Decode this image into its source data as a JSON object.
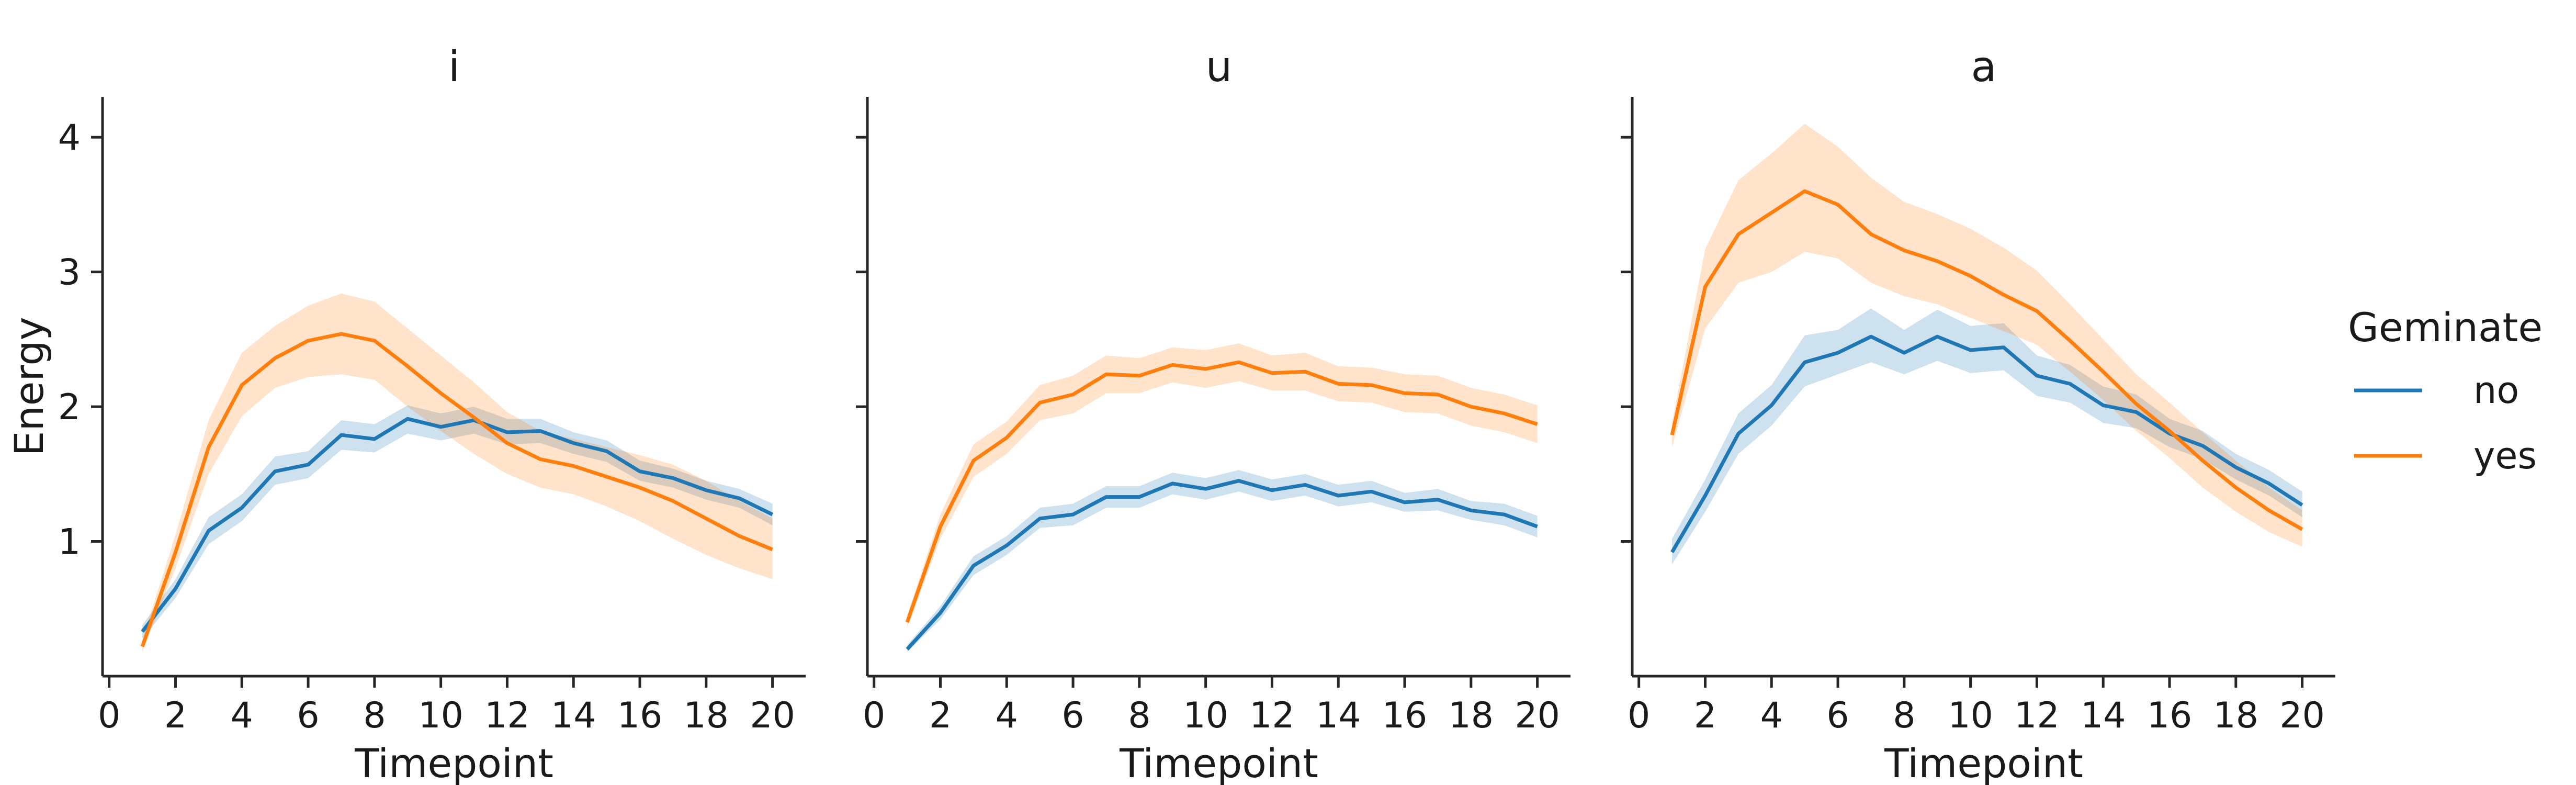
{
  "colors": {
    "no": "#1f77b4",
    "yes": "#ff7f0e"
  },
  "legend": {
    "title": "Geminate",
    "entries": [
      {
        "key": "no",
        "label": "no"
      },
      {
        "key": "yes",
        "label": "yes"
      }
    ],
    "placement": "right"
  },
  "chart_data": [
    {
      "type": "line",
      "title": "i",
      "xlabel": "Timepoint",
      "ylabel": "Energy",
      "xlim": [
        0,
        21
      ],
      "ylim": [
        0,
        4.3
      ],
      "xticks": [
        0,
        2,
        4,
        6,
        8,
        10,
        12,
        14,
        16,
        18,
        20
      ],
      "yticks": [
        1,
        2,
        3,
        4
      ],
      "x": [
        1,
        2,
        3,
        4,
        5,
        6,
        7,
        8,
        9,
        10,
        11,
        12,
        13,
        14,
        15,
        16,
        17,
        18,
        19,
        20
      ],
      "series": [
        {
          "name": "no",
          "values": [
            0.33,
            0.65,
            1.08,
            1.25,
            1.52,
            1.57,
            1.79,
            1.76,
            1.91,
            1.85,
            1.9,
            1.81,
            1.82,
            1.73,
            1.67,
            1.52,
            1.47,
            1.38,
            1.32,
            1.2
          ],
          "lower": [
            0.28,
            0.58,
            0.98,
            1.15,
            1.42,
            1.47,
            1.68,
            1.66,
            1.8,
            1.75,
            1.8,
            1.72,
            1.73,
            1.65,
            1.59,
            1.45,
            1.4,
            1.31,
            1.25,
            1.12
          ],
          "upper": [
            0.38,
            0.72,
            1.18,
            1.35,
            1.63,
            1.67,
            1.9,
            1.87,
            2.01,
            1.95,
            2.0,
            1.91,
            1.91,
            1.81,
            1.75,
            1.6,
            1.54,
            1.45,
            1.39,
            1.28
          ]
        },
        {
          "name": "yes",
          "values": [
            0.22,
            0.92,
            1.7,
            2.16,
            2.36,
            2.49,
            2.54,
            2.49,
            2.3,
            2.1,
            1.92,
            1.73,
            1.61,
            1.56,
            1.48,
            1.4,
            1.3,
            1.17,
            1.04,
            0.94
          ],
          "lower": [
            0.18,
            0.8,
            1.5,
            1.93,
            2.14,
            2.22,
            2.24,
            2.2,
            2.0,
            1.82,
            1.65,
            1.5,
            1.4,
            1.35,
            1.26,
            1.15,
            1.02,
            0.9,
            0.8,
            0.72
          ],
          "upper": [
            0.27,
            1.05,
            1.9,
            2.4,
            2.6,
            2.75,
            2.84,
            2.78,
            2.58,
            2.38,
            2.18,
            1.96,
            1.82,
            1.76,
            1.7,
            1.64,
            1.57,
            1.45,
            1.3,
            1.17
          ]
        }
      ]
    },
    {
      "type": "line",
      "title": "u",
      "xlabel": "Timepoint",
      "ylabel": "",
      "xlim": [
        0,
        21
      ],
      "ylim": [
        0,
        4.3
      ],
      "xticks": [
        0,
        2,
        4,
        6,
        8,
        10,
        12,
        14,
        16,
        18,
        20
      ],
      "yticks": [
        1,
        2,
        3,
        4
      ],
      "x": [
        1,
        2,
        3,
        4,
        5,
        6,
        7,
        8,
        9,
        10,
        11,
        12,
        13,
        14,
        15,
        16,
        17,
        18,
        19,
        20
      ],
      "series": [
        {
          "name": "no",
          "values": [
            0.2,
            0.47,
            0.82,
            0.97,
            1.17,
            1.2,
            1.33,
            1.33,
            1.43,
            1.39,
            1.45,
            1.38,
            1.42,
            1.34,
            1.37,
            1.29,
            1.31,
            1.23,
            1.2,
            1.11
          ],
          "lower": [
            0.18,
            0.42,
            0.75,
            0.9,
            1.1,
            1.12,
            1.25,
            1.25,
            1.35,
            1.31,
            1.37,
            1.3,
            1.34,
            1.26,
            1.29,
            1.22,
            1.23,
            1.16,
            1.12,
            1.03
          ],
          "upper": [
            0.23,
            0.52,
            0.89,
            1.04,
            1.25,
            1.28,
            1.41,
            1.41,
            1.51,
            1.47,
            1.53,
            1.46,
            1.5,
            1.42,
            1.45,
            1.36,
            1.39,
            1.3,
            1.28,
            1.19
          ]
        },
        {
          "name": "yes",
          "values": [
            0.4,
            1.11,
            1.6,
            1.77,
            2.03,
            2.09,
            2.24,
            2.23,
            2.31,
            2.28,
            2.33,
            2.25,
            2.26,
            2.17,
            2.16,
            2.1,
            2.09,
            2.0,
            1.95,
            1.87
          ],
          "lower": [
            0.36,
            1.02,
            1.48,
            1.65,
            1.9,
            1.95,
            2.1,
            2.1,
            2.18,
            2.14,
            2.19,
            2.12,
            2.12,
            2.04,
            2.03,
            1.96,
            1.95,
            1.86,
            1.81,
            1.73
          ],
          "upper": [
            0.45,
            1.2,
            1.72,
            1.89,
            2.16,
            2.23,
            2.38,
            2.36,
            2.44,
            2.42,
            2.47,
            2.38,
            2.4,
            2.3,
            2.29,
            2.24,
            2.23,
            2.14,
            2.09,
            2.01
          ]
        }
      ]
    },
    {
      "type": "line",
      "title": "a",
      "xlabel": "Timepoint",
      "ylabel": "",
      "xlim": [
        0,
        21
      ],
      "ylim": [
        0,
        4.3
      ],
      "xticks": [
        0,
        2,
        4,
        6,
        8,
        10,
        12,
        14,
        16,
        18,
        20
      ],
      "yticks": [
        1,
        2,
        3,
        4
      ],
      "x": [
        1,
        2,
        3,
        4,
        5,
        6,
        7,
        8,
        9,
        10,
        11,
        12,
        13,
        14,
        15,
        16,
        17,
        18,
        19,
        20
      ],
      "series": [
        {
          "name": "no",
          "values": [
            0.92,
            1.34,
            1.8,
            2.01,
            2.33,
            2.4,
            2.52,
            2.4,
            2.52,
            2.42,
            2.44,
            2.23,
            2.17,
            2.01,
            1.96,
            1.8,
            1.71,
            1.55,
            1.43,
            1.27
          ],
          "lower": [
            0.83,
            1.22,
            1.65,
            1.86,
            2.15,
            2.24,
            2.33,
            2.24,
            2.34,
            2.25,
            2.27,
            2.08,
            2.03,
            1.88,
            1.84,
            1.7,
            1.61,
            1.46,
            1.34,
            1.18
          ],
          "upper": [
            1.02,
            1.46,
            1.95,
            2.16,
            2.53,
            2.57,
            2.73,
            2.57,
            2.72,
            2.6,
            2.62,
            2.38,
            2.31,
            2.15,
            2.09,
            1.91,
            1.82,
            1.65,
            1.53,
            1.37
          ]
        },
        {
          "name": "yes",
          "values": [
            1.79,
            2.89,
            3.28,
            3.44,
            3.6,
            3.5,
            3.28,
            3.16,
            3.08,
            2.97,
            2.83,
            2.71,
            2.49,
            2.26,
            2.02,
            1.82,
            1.6,
            1.4,
            1.23,
            1.09
          ],
          "lower": [
            1.7,
            2.58,
            2.92,
            3.0,
            3.15,
            3.1,
            2.92,
            2.82,
            2.76,
            2.66,
            2.56,
            2.46,
            2.26,
            2.05,
            1.82,
            1.62,
            1.4,
            1.22,
            1.07,
            0.96
          ],
          "upper": [
            1.88,
            3.17,
            3.68,
            3.88,
            4.1,
            3.93,
            3.7,
            3.52,
            3.43,
            3.32,
            3.18,
            3.01,
            2.76,
            2.5,
            2.24,
            2.03,
            1.81,
            1.6,
            1.4,
            1.23
          ]
        }
      ]
    }
  ]
}
